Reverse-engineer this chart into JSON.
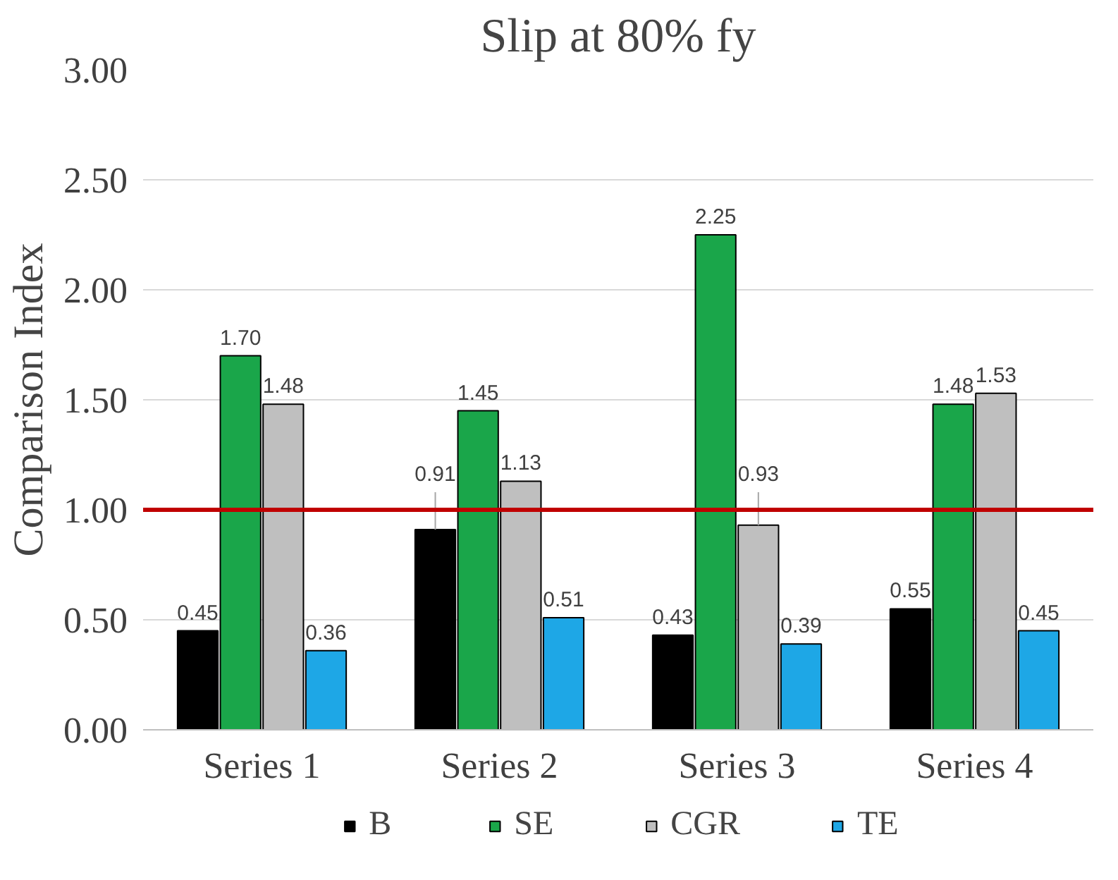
{
  "chart_data": {
    "type": "bar",
    "title": "Slip at 80% fy",
    "ylabel": "Comparison Index",
    "categories": [
      "Series 1",
      "Series 2",
      "Series 3",
      "Series 4"
    ],
    "series": [
      {
        "name": "B",
        "color": "#000000",
        "values": [
          0.45,
          0.91,
          0.43,
          0.55
        ],
        "value_labels": [
          "0.45",
          "0.91",
          "0.43",
          "0.55"
        ]
      },
      {
        "name": "SE",
        "color": "#1aa64a",
        "values": [
          1.7,
          1.45,
          2.25,
          1.48
        ],
        "value_labels": [
          "1.70",
          "1.45",
          "2.25",
          "1.48"
        ]
      },
      {
        "name": "CGR",
        "color": "#bfbfbf",
        "values": [
          1.48,
          1.13,
          0.93,
          1.53
        ],
        "value_labels": [
          "1.48",
          "1.13",
          "0.93",
          "1.53"
        ]
      },
      {
        "name": "TE",
        "color": "#1ea7e6",
        "values": [
          0.36,
          0.51,
          0.39,
          0.45
        ],
        "value_labels": [
          "0.36",
          "0.51",
          "0.39",
          "0.45"
        ]
      }
    ],
    "ylim": [
      0,
      3
    ],
    "yticks": [
      {
        "value": 0,
        "label": "0.00"
      },
      {
        "value": 0.5,
        "label": "0.50"
      },
      {
        "value": 1,
        "label": "1.00"
      },
      {
        "value": 1.5,
        "label": "1.50"
      },
      {
        "value": 2,
        "label": "2.00"
      },
      {
        "value": 2.5,
        "label": "2.50"
      },
      {
        "value": 3,
        "label": "3.00"
      }
    ],
    "ref_lines": [
      {
        "axis": "y",
        "value": 1,
        "color": "#c00000"
      }
    ],
    "grid": "y",
    "legend": "bottom"
  }
}
